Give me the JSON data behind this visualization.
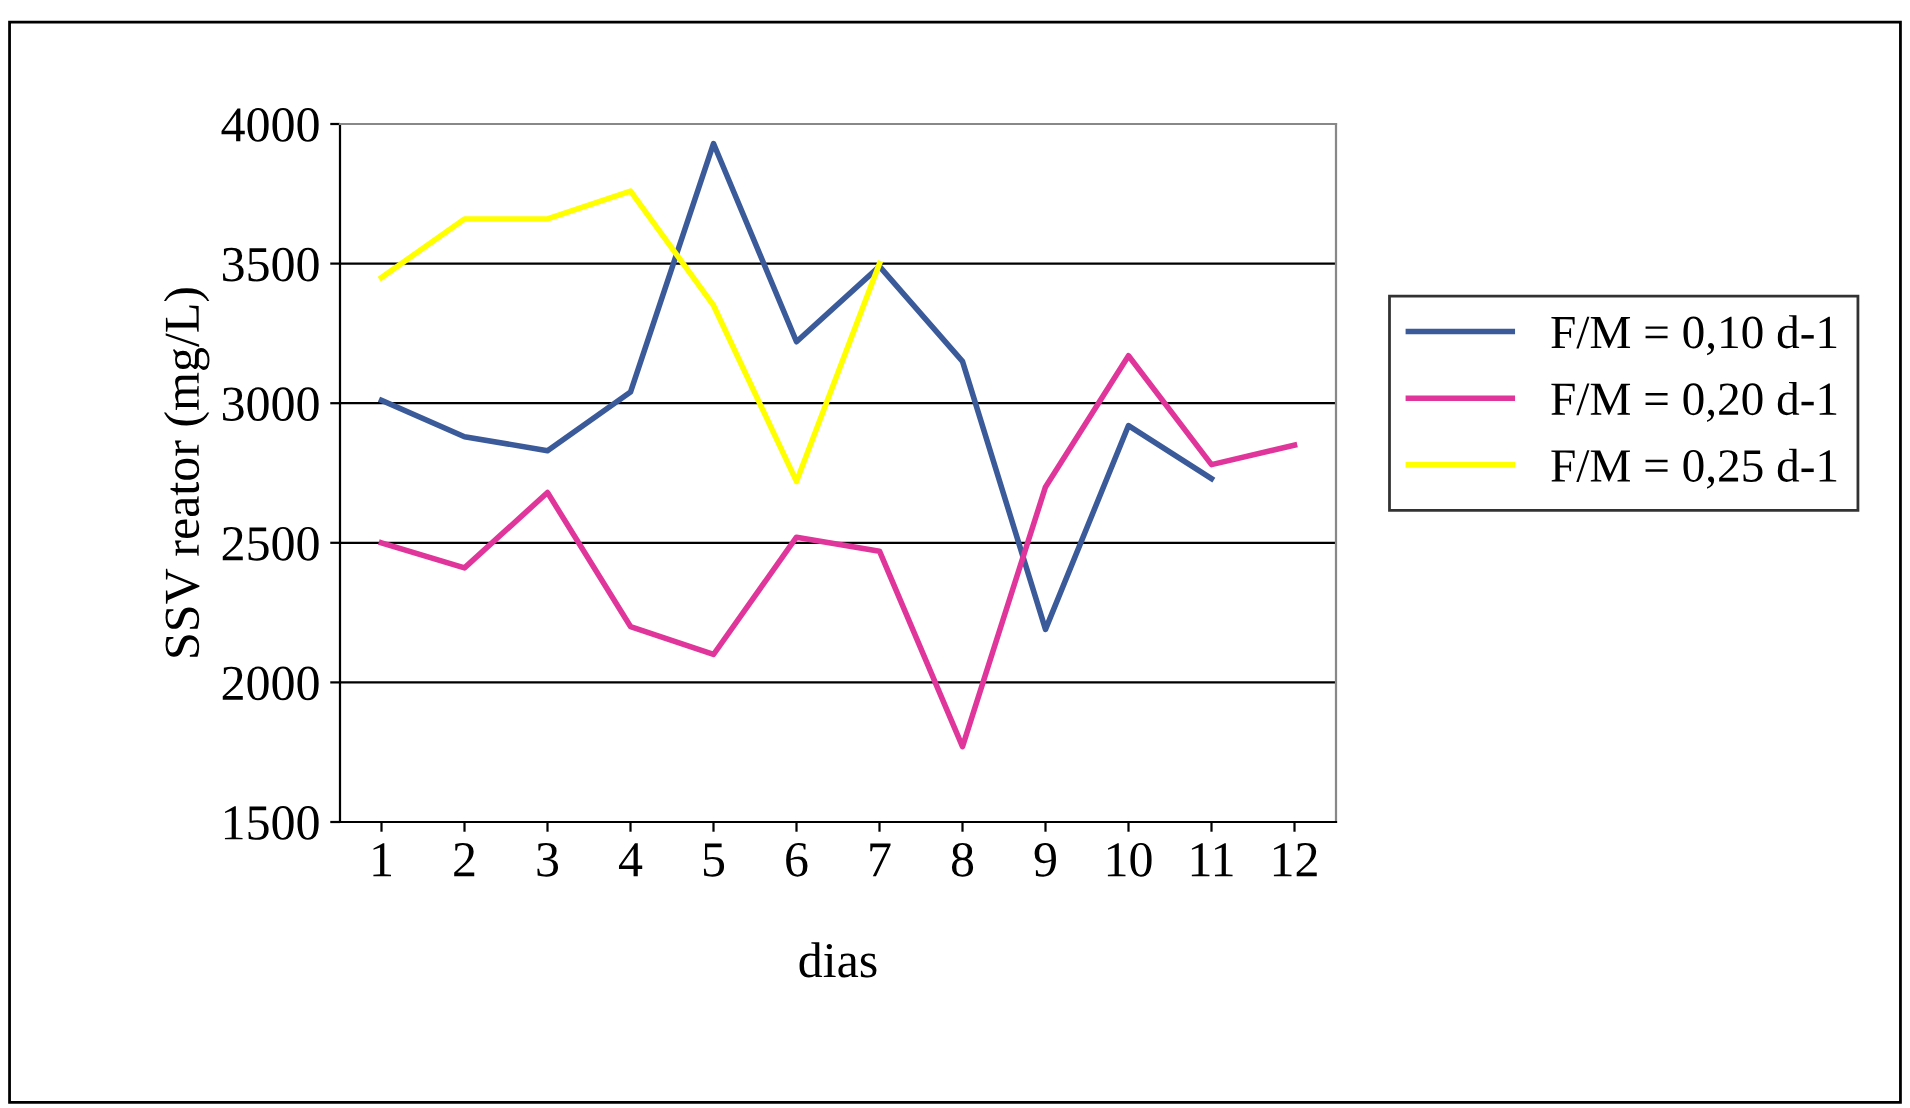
{
  "chart_data": {
    "type": "line",
    "xlabel": "dias",
    "ylabel": "SSV reator (mg/L)",
    "categories": [
      "1",
      "2",
      "3",
      "4",
      "5",
      "6",
      "7",
      "8",
      "9",
      "10",
      "11",
      "12"
    ],
    "series": [
      {
        "name": "F/M = 0,10 d-1",
        "color": "#3b5a9a",
        "values": [
          3010,
          2880,
          2830,
          3040,
          3930,
          3220,
          3490,
          3150,
          2190,
          2920,
          2730,
          null
        ]
      },
      {
        "name": "F/M = 0,20 d-1",
        "color": "#e0359a",
        "values": [
          2500,
          2410,
          2680,
          2200,
          2100,
          2520,
          2470,
          1770,
          2700,
          3170,
          2780,
          2850
        ]
      },
      {
        "name": "F/M = 0,25 d-1",
        "color": "#ffff00",
        "values": [
          3450,
          3660,
          3660,
          3760,
          3350,
          2720,
          3500,
          null,
          null,
          null,
          null,
          null
        ]
      }
    ],
    "ylim": [
      1500,
      4000
    ],
    "yticks": [
      1500,
      2000,
      2500,
      3000,
      3500,
      4000
    ],
    "grid": "y",
    "legend": "right",
    "marker": "none",
    "line_style": "solid"
  }
}
